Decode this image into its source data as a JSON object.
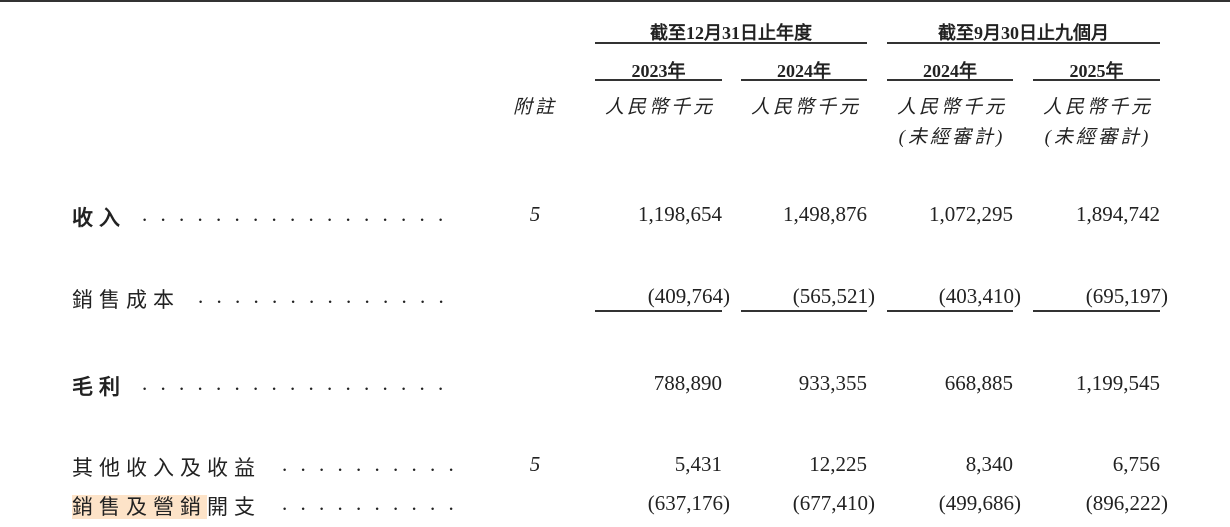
{
  "header": {
    "group_year": "截至12月31日止年度",
    "group_nine_months": "截至9月30日止九個月",
    "years": [
      "2023年",
      "2024年",
      "2024年",
      "2025年"
    ],
    "note_label": "附註",
    "units": [
      "人民幣千元",
      "人民幣千元",
      "人民幣千元",
      "人民幣千元"
    ],
    "unaudited": [
      "(未經審計)",
      "(未經審計)"
    ]
  },
  "rows": [
    {
      "label": "收入",
      "note": "5",
      "values": [
        "1,198,654",
        "1,498,876",
        "1,072,295",
        "1,894,742"
      ]
    },
    {
      "label": "銷售成本",
      "note": "",
      "values": [
        "(409,764)",
        "(565,521)",
        "(403,410)",
        "(695,197)"
      ]
    },
    {
      "label": "毛利",
      "note": "",
      "values": [
        "788,890",
        "933,355",
        "668,885",
        "1,199,545"
      ]
    },
    {
      "label": "其他收入及收益",
      "note": "5",
      "values": [
        "5,431",
        "12,225",
        "8,340",
        "6,756"
      ]
    },
    {
      "label_highlighted": "銷售及營銷",
      "label_rest": "開支",
      "note": "",
      "values": [
        "(637,176)",
        "(677,410)",
        "(499,686)",
        "(896,222)"
      ]
    }
  ],
  "highlight_color": "#fde3c8"
}
